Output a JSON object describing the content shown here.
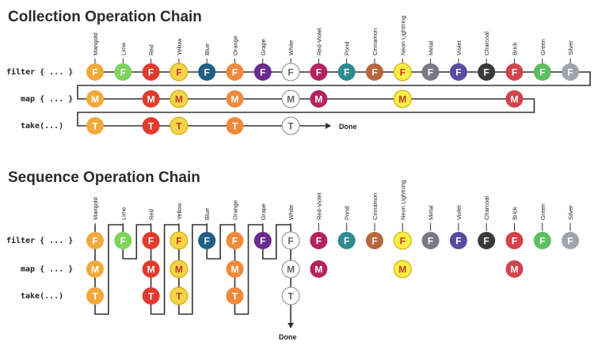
{
  "colors_order": [
    "Marigold",
    "Lime",
    "Red",
    "Yellow",
    "Blue",
    "Orange",
    "Grape",
    "White",
    "Red-Violet",
    "Pond",
    "Cinnamon",
    "Neon Lightning",
    "Metal",
    "Violet",
    "Charcoal",
    "Brick",
    "Green",
    "Silver"
  ],
  "palette": {
    "Marigold": "#f2a93b",
    "Lime": "#7ed35a",
    "Red": "#e23b2e",
    "Yellow": "#f5d547",
    "Blue": "#1f5f86",
    "Orange": "#f08a3a",
    "Grape": "#6a2a8e",
    "White": "#ffffff",
    "Red-Violet": "#b3245e",
    "Pond": "#2e8c90",
    "Cinnamon": "#b8683c",
    "Neon Lightning": "#f8ee44",
    "Metal": "#777a83",
    "Violet": "#5a4aa0",
    "Charcoal": "#3a3a3a",
    "Brick": "#d2434a",
    "Green": "#5cbf60",
    "Silver": "#9ea3ad"
  },
  "symbols": {
    "filter": "F",
    "map": "M",
    "take": "T"
  },
  "collection": {
    "title": "Collection Operation Chain",
    "rows": [
      {
        "label": "filter { ... }",
        "op": "filter",
        "items": [
          "Marigold",
          "Lime",
          "Red",
          "Yellow",
          "Blue",
          "Orange",
          "Grape",
          "White",
          "Red-Violet",
          "Pond",
          "Cinnamon",
          "Neon Lightning",
          "Metal",
          "Violet",
          "Charcoal",
          "Brick",
          "Green",
          "Silver"
        ]
      },
      {
        "label": "map { ... }",
        "op": "map",
        "items": [
          "Marigold",
          "Red",
          "Yellow",
          "Orange",
          "White",
          "Red-Violet",
          "Neon Lightning",
          "Brick"
        ]
      },
      {
        "label": "take(...)",
        "op": "take",
        "items": [
          "Marigold",
          "Red",
          "Yellow",
          "Orange",
          "White"
        ]
      }
    ],
    "end_label": "Done"
  },
  "sequence": {
    "title": "Sequence Operation Chain",
    "rows": [
      {
        "label": "filter { ... }",
        "op": "filter",
        "items": [
          "Marigold",
          "Lime",
          "Red",
          "Yellow",
          "Blue",
          "Orange",
          "Grape",
          "White",
          "Red-Violet",
          "Pond",
          "Cinnamon",
          "Neon Lightning",
          "Metal",
          "Violet",
          "Charcoal",
          "Brick",
          "Green",
          "Silver"
        ]
      },
      {
        "label": "map { ... }",
        "op": "map",
        "items": [
          "Marigold",
          "Red",
          "Yellow",
          "Orange",
          "White",
          "Red-Violet",
          "Neon Lightning",
          "Brick"
        ]
      },
      {
        "label": "take(...)",
        "op": "take",
        "items": [
          "Marigold",
          "Red",
          "Yellow",
          "Orange",
          "White"
        ]
      }
    ],
    "end_label": "Done"
  }
}
